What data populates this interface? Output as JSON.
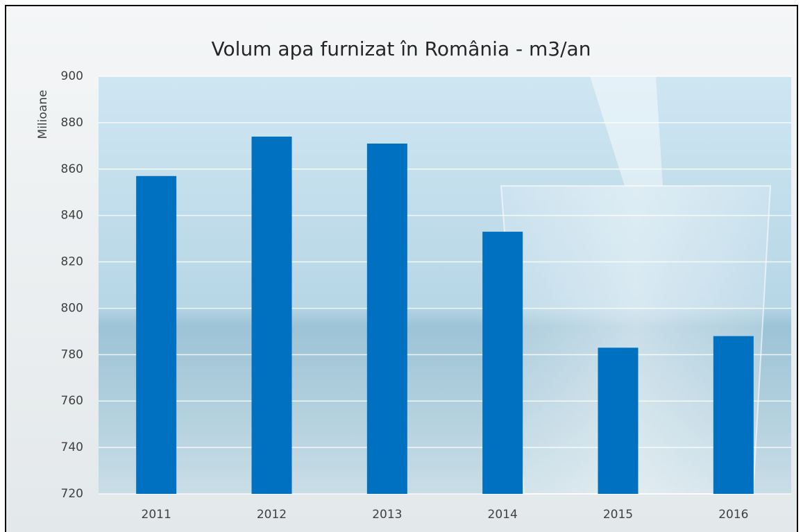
{
  "chart_data": {
    "type": "bar",
    "title": "Volum apa furnizat în România - m3/an",
    "y_label": "Milioane",
    "categories": [
      "2011",
      "2012",
      "2013",
      "2014",
      "2015",
      "2016"
    ],
    "values": [
      857,
      874,
      871,
      833,
      783,
      788
    ],
    "color": "#0070c0",
    "ylim": [
      720,
      900
    ],
    "yticks": [
      720,
      740,
      760,
      780,
      800,
      820,
      840,
      860,
      880,
      900
    ],
    "grid": true
  }
}
